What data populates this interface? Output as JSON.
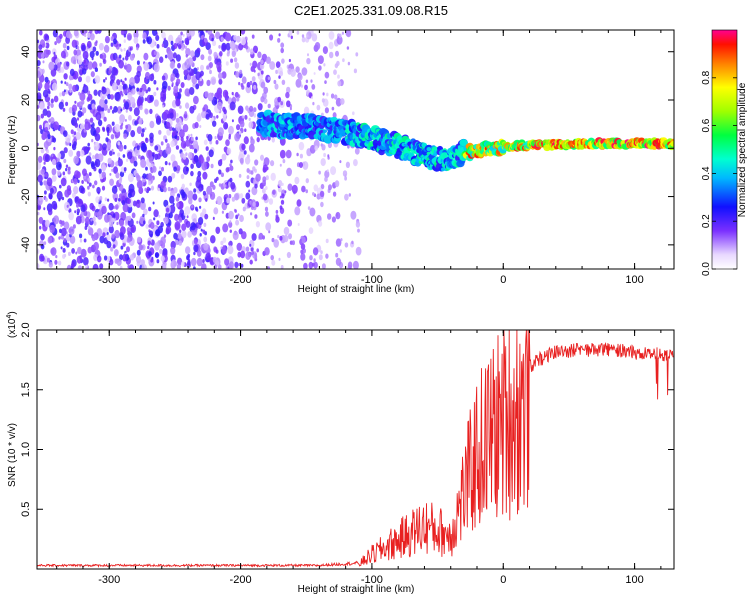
{
  "title": "C2E1.2025.331.09.08.R15",
  "colors": {
    "snr_line": "#e82020",
    "axis": "#000000",
    "background": "#ffffff"
  },
  "chart_data": [
    {
      "type": "heatmap",
      "title": "C2E1.2025.331.09.08.R15",
      "xlabel": "Height of straight line (km)",
      "ylabel": "Frequency (Hz)",
      "xlim": [
        -355,
        130
      ],
      "ylim": [
        -50,
        49
      ],
      "xticks": [
        -300,
        -200,
        -100,
        0,
        100
      ],
      "xtick_labels": [
        "-300",
        "-200",
        "-100",
        "0",
        "100"
      ],
      "yticks": [
        -40,
        -20,
        0,
        20,
        40
      ],
      "ytick_labels": [
        "-40",
        "-20",
        "0",
        "20",
        "40"
      ],
      "colorbar": {
        "label": "Normalized spectral amplitude",
        "range": [
          0,
          1
        ],
        "ticks": [
          0.0,
          0.2,
          0.4,
          0.6,
          0.8
        ],
        "tick_labels": [
          "0.0",
          "0.2",
          "0.4",
          "0.6",
          "0.8"
        ]
      },
      "ridge": {
        "description_points": [
          {
            "x": -180,
            "y": 10
          },
          {
            "x": -150,
            "y": 9
          },
          {
            "x": -120,
            "y": 7
          },
          {
            "x": -100,
            "y": 4
          },
          {
            "x": -80,
            "y": 1
          },
          {
            "x": -60,
            "y": -3
          },
          {
            "x": -45,
            "y": -5
          },
          {
            "x": -30,
            "y": -2
          },
          {
            "x": -10,
            "y": 0
          },
          {
            "x": 10,
            "y": 1
          },
          {
            "x": 40,
            "y": 1.5
          },
          {
            "x": 80,
            "y": 2
          },
          {
            "x": 130,
            "y": 2
          }
        ]
      }
    },
    {
      "type": "line",
      "xlabel": "Height of straight line (km)",
      "ylabel": "SNR (10 * v/v)",
      "y_exponent_label": "(x10",
      "y_exponent_power": "4",
      "y_exponent_close": ")",
      "xlim": [
        -355,
        130
      ],
      "ylim": [
        0,
        2.0
      ],
      "xticks": [
        -300,
        -200,
        -100,
        0,
        100
      ],
      "xtick_labels": [
        "-300",
        "-200",
        "-100",
        "0",
        "100"
      ],
      "yticks": [
        0.5,
        1.0,
        1.5,
        2.0
      ],
      "ytick_labels": [
        "0.5",
        "1.0",
        "1.5",
        "2.0"
      ],
      "series": [
        {
          "name": "SNR",
          "envelope": [
            {
              "x": -355,
              "y": 0.03
            },
            {
              "x": -140,
              "y": 0.03
            },
            {
              "x": -110,
              "y": 0.05
            },
            {
              "x": -100,
              "y": 0.15
            },
            {
              "x": -80,
              "y": 0.3
            },
            {
              "x": -60,
              "y": 0.45
            },
            {
              "x": -40,
              "y": 0.35
            },
            {
              "x": -30,
              "y": 0.8
            },
            {
              "x": -20,
              "y": 1.2
            },
            {
              "x": -10,
              "y": 1.4
            },
            {
              "x": 0,
              "y": 1.55
            },
            {
              "x": 10,
              "y": 1.65
            },
            {
              "x": 25,
              "y": 1.8
            },
            {
              "x": 40,
              "y": 1.88
            },
            {
              "x": 80,
              "y": 1.9
            },
            {
              "x": 110,
              "y": 1.86
            },
            {
              "x": 130,
              "y": 1.85
            }
          ]
        }
      ]
    }
  ]
}
